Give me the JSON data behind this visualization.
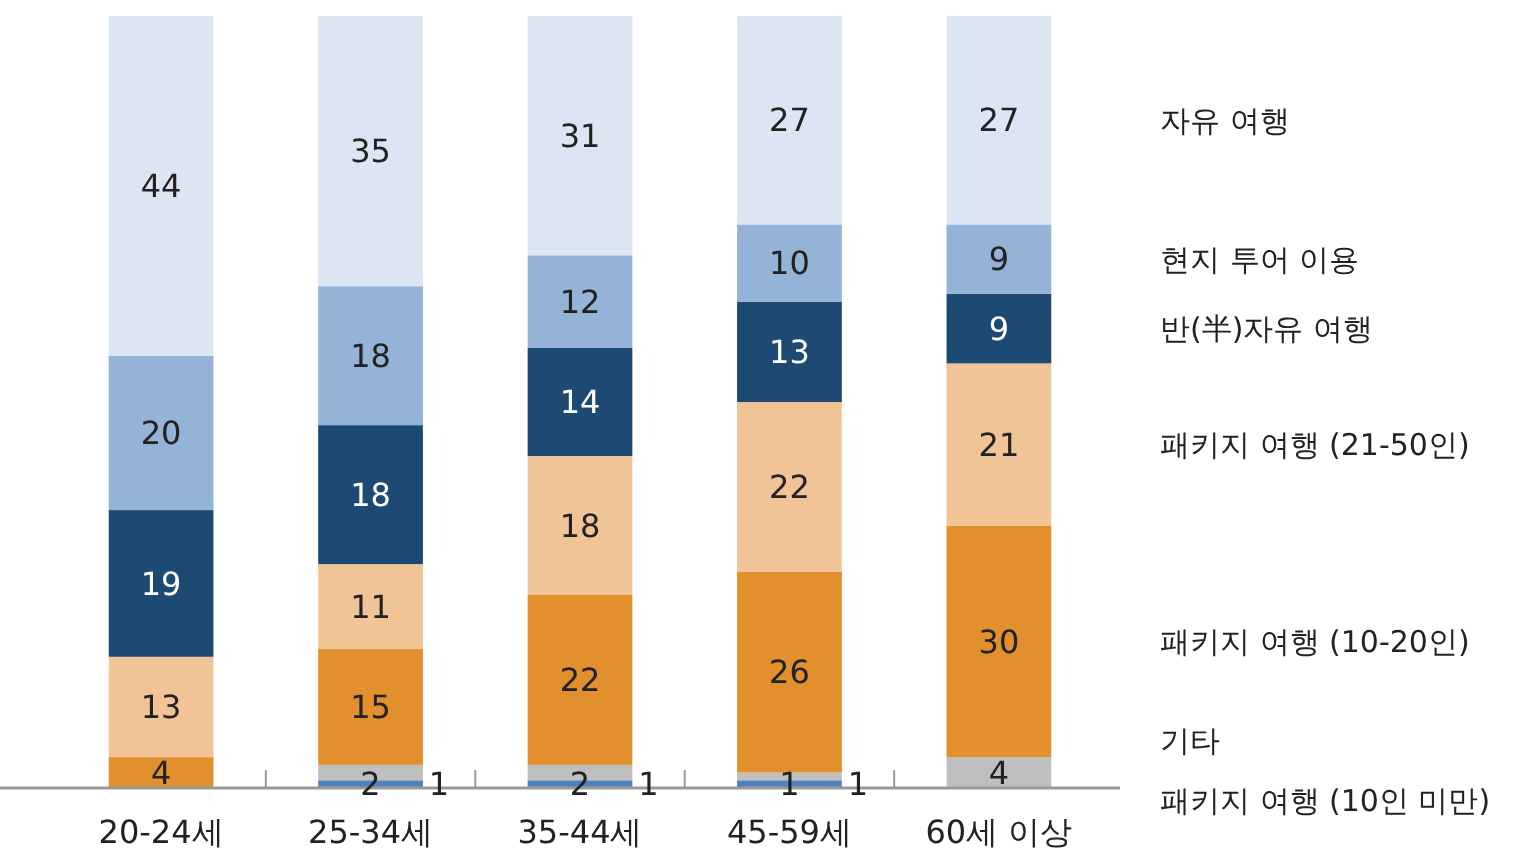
{
  "chart_data": {
    "type": "bar",
    "stacked": true,
    "data_labels": true,
    "legend": "right",
    "categories": [
      "20-24세",
      "25-34세",
      "35-44세",
      "45-59세",
      "60세 이상"
    ],
    "series": [
      {
        "name": "패키지 여행 (10인 미만)",
        "color": "#4f81bd",
        "values": [
          null,
          1,
          1,
          1,
          null
        ]
      },
      {
        "name": "기타",
        "color": "#bfbfbf",
        "values": [
          null,
          2,
          2,
          1,
          4
        ]
      },
      {
        "name": "패키지 여행 (10-20인)",
        "color": "#e28f2d",
        "values": [
          4,
          15,
          22,
          26,
          30
        ]
      },
      {
        "name": "패키지 여행 (21-50인)",
        "color": "#f0c496",
        "values": [
          13,
          11,
          18,
          22,
          21
        ]
      },
      {
        "name": "반(半)자유 여행",
        "color": "#1c4a72",
        "values": [
          19,
          18,
          14,
          13,
          9
        ]
      },
      {
        "name": "현지 투어 이용",
        "color": "#95b3d7",
        "values": [
          20,
          18,
          12,
          10,
          9
        ]
      },
      {
        "name": "자유 여행",
        "color": "#dce6f2",
        "values": [
          44,
          35,
          31,
          27,
          27
        ]
      }
    ]
  }
}
